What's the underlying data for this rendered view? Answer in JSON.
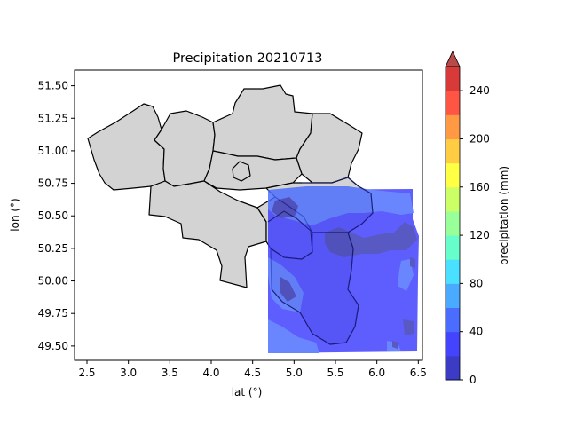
{
  "chart_data": {
    "type": "contour-map",
    "title": "Precipitation 20210713",
    "xlabel": "lat (°)",
    "ylabel": "lon (°)",
    "xlim": [
      2.35,
      6.55
    ],
    "ylim": [
      49.39,
      51.62
    ],
    "x_ticks": [
      "2.5",
      "3.0",
      "3.5",
      "4.0",
      "4.5",
      "5.0",
      "5.5",
      "6.0",
      "6.5"
    ],
    "y_ticks": [
      "49.50",
      "49.75",
      "50.00",
      "50.25",
      "50.50",
      "50.75",
      "51.00",
      "51.25",
      "51.50"
    ],
    "colorbar": {
      "label": "precipitation (mm)",
      "ticks": [
        "0",
        "40",
        "80",
        "120",
        "160",
        "200",
        "240"
      ],
      "levels": [
        0,
        20,
        40,
        60,
        80,
        100,
        120,
        140,
        160,
        180,
        200,
        220,
        240,
        260
      ],
      "colors": [
        "#3b3bc6",
        "#4444ff",
        "#4a6cff",
        "#4aaaff",
        "#4ae0ff",
        "#66ffcc",
        "#99ff99",
        "#ccff66",
        "#ffff44",
        "#ffcc44",
        "#ff9944",
        "#ff5544",
        "#d83a3a",
        "#b84a4a"
      ],
      "extend": "max"
    },
    "data_extent": {
      "x": [
        4.7,
        6.48
      ],
      "y": [
        49.48,
        50.71
      ]
    },
    "region_fill": "#d3d3d3"
  }
}
